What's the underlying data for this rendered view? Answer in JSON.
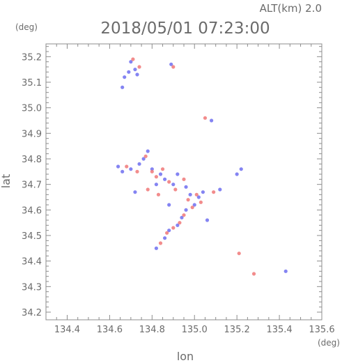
{
  "chart_data": {
    "type": "scatter",
    "title": "2018/05/01 07:23:00",
    "subtitle": "ALT(km) 2.0",
    "xlabel": "lon",
    "ylabel": "lat",
    "x_unit": "(deg)",
    "y_unit": "(deg)",
    "xlim": [
      134.3,
      135.6
    ],
    "ylim": [
      34.17,
      35.25
    ],
    "x_ticks": [
      134.4,
      134.6,
      134.8,
      135.0,
      135.2,
      135.4,
      135.6
    ],
    "x_tick_labels": [
      "134.4",
      "134.6",
      "134.8",
      "135.0",
      "135.2",
      "135.4",
      "135.6"
    ],
    "y_ticks": [
      34.2,
      34.3,
      34.4,
      34.5,
      34.6,
      34.7,
      34.8,
      34.9,
      35.0,
      35.1,
      35.2
    ],
    "y_tick_labels": [
      "34.2",
      "34.3",
      "34.4",
      "34.5",
      "34.6",
      "34.7",
      "34.8",
      "34.9",
      "35.0",
      "35.1",
      "35.2"
    ],
    "grid": false,
    "colors": {
      "positive": "#f07878",
      "negative": "#6e6ef0",
      "axis": "#8c8c8c",
      "text": "#6b6b6b"
    },
    "series": [
      {
        "color": "negative",
        "points": [
          [
            134.7,
            35.18
          ],
          [
            134.72,
            35.15
          ],
          [
            134.69,
            35.14
          ],
          [
            134.73,
            35.13
          ],
          [
            134.67,
            35.12
          ],
          [
            134.66,
            35.08
          ],
          [
            134.89,
            35.17
          ],
          [
            135.08,
            34.95
          ],
          [
            134.78,
            34.83
          ],
          [
            134.76,
            34.8
          ],
          [
            134.64,
            34.77
          ],
          [
            134.66,
            34.75
          ],
          [
            134.7,
            34.76
          ],
          [
            134.74,
            34.78
          ],
          [
            134.8,
            34.76
          ],
          [
            134.84,
            34.74
          ],
          [
            134.86,
            34.72
          ],
          [
            134.9,
            34.7
          ],
          [
            134.92,
            34.74
          ],
          [
            134.96,
            34.69
          ],
          [
            134.98,
            34.66
          ],
          [
            135.02,
            34.65
          ],
          [
            135.04,
            34.67
          ],
          [
            135.0,
            34.62
          ],
          [
            134.96,
            34.6
          ],
          [
            134.94,
            34.57
          ],
          [
            134.92,
            34.54
          ],
          [
            134.88,
            34.52
          ],
          [
            134.86,
            34.49
          ],
          [
            134.82,
            34.45
          ],
          [
            135.2,
            34.74
          ],
          [
            135.22,
            34.76
          ],
          [
            135.43,
            34.36
          ],
          [
            135.06,
            34.56
          ],
          [
            134.72,
            34.67
          ],
          [
            134.88,
            34.62
          ],
          [
            135.12,
            34.68
          ],
          [
            134.82,
            34.7
          ]
        ]
      },
      {
        "color": "positive",
        "points": [
          [
            134.71,
            35.19
          ],
          [
            134.74,
            35.16
          ],
          [
            134.9,
            35.16
          ],
          [
            135.05,
            34.96
          ],
          [
            134.77,
            34.81
          ],
          [
            134.8,
            34.75
          ],
          [
            134.82,
            34.73
          ],
          [
            134.85,
            34.76
          ],
          [
            134.88,
            34.71
          ],
          [
            134.91,
            34.68
          ],
          [
            134.95,
            34.72
          ],
          [
            134.97,
            34.64
          ],
          [
            135.01,
            34.66
          ],
          [
            135.09,
            34.67
          ],
          [
            134.99,
            34.61
          ],
          [
            134.95,
            34.58
          ],
          [
            134.93,
            34.55
          ],
          [
            134.9,
            34.53
          ],
          [
            134.87,
            34.51
          ],
          [
            134.84,
            34.47
          ],
          [
            135.21,
            34.43
          ],
          [
            134.68,
            34.77
          ],
          [
            134.78,
            34.68
          ],
          [
            134.83,
            34.66
          ],
          [
            135.03,
            34.63
          ],
          [
            135.28,
            34.35
          ],
          [
            134.73,
            34.75
          ]
        ]
      }
    ]
  }
}
